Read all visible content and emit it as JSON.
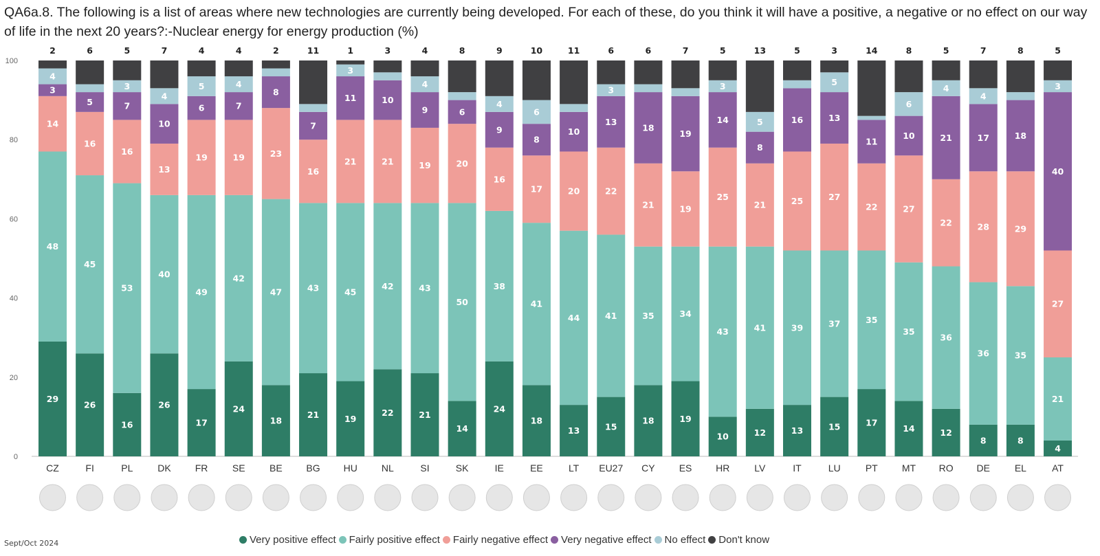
{
  "title": "QA6a.8. The following is a list of areas where new technologies are currently being developed. For each of these, do you think it will have a positive, a negative or no effect on our way of life in the next 20 years?:-Nuclear energy for energy production (%)",
  "source_note": "Sept/Oct 2024",
  "colors": {
    "very_positive": "#2e7d66",
    "fairly_positive": "#7cc4b8",
    "fairly_negative": "#f09e98",
    "very_negative": "#8a5fa0",
    "no_effect": "#a9ccd6",
    "dont_know": "#404042"
  },
  "legend": [
    {
      "label": "Very positive effect",
      "color": "#2e7d66"
    },
    {
      "label": "Fairly positive effect",
      "color": "#7cc4b8"
    },
    {
      "label": "Fairly negative effect",
      "color": "#f09e98"
    },
    {
      "label": "Very negative effect",
      "color": "#8a5fa0"
    },
    {
      "label": "No effect",
      "color": "#a9ccd6"
    },
    {
      "label": "Don't know",
      "color": "#404042"
    }
  ],
  "chart_data": {
    "type": "bar",
    "stacked": true,
    "ylim": [
      0,
      100
    ],
    "yticks": [
      0,
      20,
      40,
      60,
      80,
      100
    ],
    "grid": false,
    "legend_position": "bottom",
    "categories": [
      "CZ",
      "FI",
      "PL",
      "DK",
      "FR",
      "SE",
      "BE",
      "BG",
      "HU",
      "NL",
      "SI",
      "SK",
      "IE",
      "EE",
      "LT",
      "EU27",
      "CY",
      "ES",
      "HR",
      "LV",
      "IT",
      "LU",
      "PT",
      "MT",
      "RO",
      "DE",
      "EL",
      "AT"
    ],
    "series": [
      {
        "name": "Very positive effect",
        "values": [
          29,
          26,
          16,
          26,
          17,
          24,
          18,
          21,
          19,
          22,
          21,
          14,
          24,
          18,
          13,
          15,
          18,
          19,
          10,
          12,
          13,
          15,
          17,
          14,
          12,
          8,
          8,
          4
        ]
      },
      {
        "name": "Fairly positive effect",
        "values": [
          48,
          45,
          53,
          40,
          49,
          42,
          47,
          43,
          45,
          42,
          43,
          50,
          38,
          41,
          44,
          41,
          35,
          34,
          43,
          41,
          39,
          37,
          35,
          35,
          36,
          36,
          35,
          21
        ]
      },
      {
        "name": "Fairly negative effect",
        "values": [
          14,
          16,
          16,
          13,
          19,
          19,
          23,
          16,
          21,
          21,
          19,
          20,
          16,
          17,
          20,
          22,
          21,
          19,
          25,
          21,
          25,
          27,
          22,
          27,
          22,
          28,
          29,
          27
        ]
      },
      {
        "name": "Very negative effect",
        "values": [
          3,
          5,
          7,
          10,
          6,
          7,
          8,
          7,
          11,
          10,
          9,
          6,
          9,
          8,
          10,
          13,
          18,
          19,
          14,
          8,
          16,
          13,
          11,
          10,
          21,
          17,
          18,
          40
        ]
      },
      {
        "name": "No effect",
        "values": [
          4,
          2,
          3,
          4,
          5,
          4,
          2,
          2,
          3,
          2,
          4,
          2,
          4,
          6,
          2,
          3,
          2,
          2,
          3,
          5,
          2,
          5,
          1,
          6,
          4,
          4,
          2,
          3
        ]
      },
      {
        "name": "Don't know",
        "values": [
          2,
          6,
          5,
          7,
          4,
          4,
          2,
          11,
          1,
          3,
          4,
          8,
          9,
          10,
          11,
          6,
          6,
          7,
          5,
          13,
          5,
          3,
          14,
          8,
          5,
          7,
          8,
          5
        ]
      }
    ],
    "label_min": 3
  }
}
